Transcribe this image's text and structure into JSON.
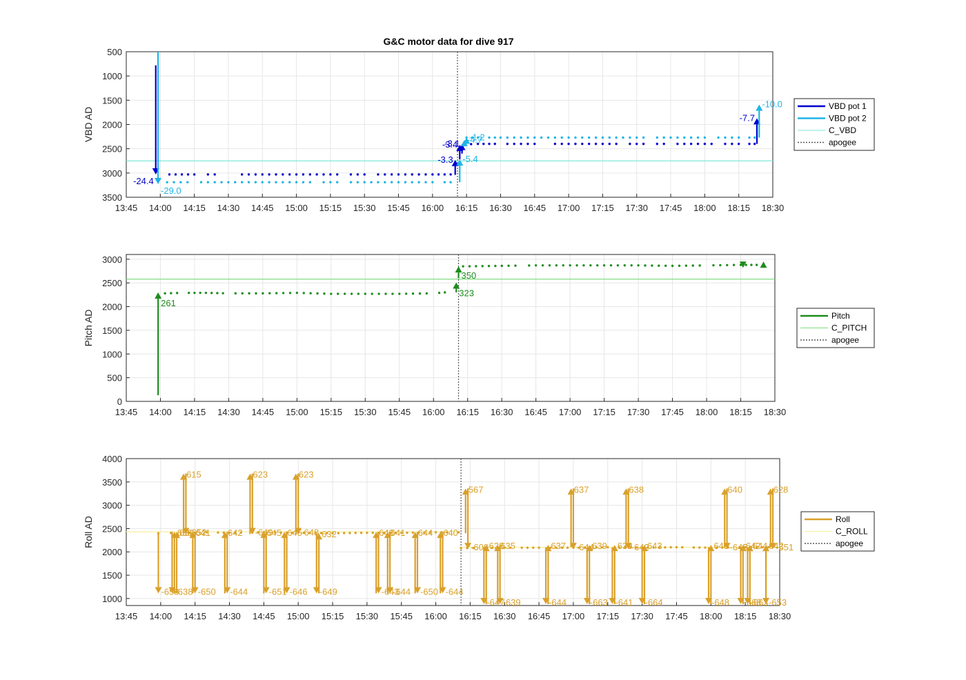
{
  "title": "G&C motor data for dive 917",
  "x_tick_labels": [
    "13:45",
    "14:00",
    "14:15",
    "14:30",
    "14:45",
    "15:00",
    "15:15",
    "15:30",
    "15:45",
    "16:00",
    "16:15",
    "16:30",
    "16:45",
    "17:00",
    "17:15",
    "17:30",
    "17:45",
    "18:00",
    "18:15",
    "18:30"
  ],
  "colors": {
    "vbd1": "#0000cd",
    "vbd2": "#1eb4e6",
    "c_vbd": "#7fe6d9",
    "pitch": "#1e8c1e",
    "c_pitch": "#7fdc7f",
    "roll": "#d9a02a",
    "c_roll": "#f5ee9a",
    "apogee": "#555555"
  },
  "chart_data": [
    {
      "type": "line",
      "title": "G&C motor data for dive 917",
      "xlabel": "",
      "ylabel": "VBD AD",
      "xlim": [
        "13:45",
        "18:30"
      ],
      "ylim": [
        500,
        3500
      ],
      "y_reversed": true,
      "y_ticks": [
        500,
        1000,
        1500,
        2000,
        2500,
        3000,
        3500
      ],
      "grid": true,
      "legend_position": "right",
      "legend": [
        "VBD pot 1",
        "VBD pot 2",
        "C_VBD",
        "apogee"
      ],
      "reference_lines": [
        {
          "name": "C_VBD",
          "y": 2750
        }
      ],
      "apogee": "16:11",
      "series": [
        {
          "name": "VBD pot 1",
          "color_key": "vbd1",
          "x": [
            "14:04",
            "14:15",
            "14:30",
            "14:45",
            "15:00",
            "15:15",
            "15:30",
            "15:45",
            "16:00",
            "16:08"
          ],
          "y": [
            3030,
            3030,
            3030,
            3030,
            3030,
            3030,
            3030,
            3030,
            3030,
            3030
          ]
        },
        {
          "name": "VBD pot 1",
          "color_key": "vbd1",
          "x": [
            "16:14",
            "16:20",
            "16:30",
            "16:45",
            "17:00",
            "17:15",
            "17:30",
            "17:45",
            "18:00",
            "18:15",
            "18:22"
          ],
          "y": [
            2410,
            2400,
            2400,
            2400,
            2400,
            2400,
            2400,
            2400,
            2400,
            2400,
            2400
          ]
        },
        {
          "name": "VBD pot 2",
          "color_key": "vbd2",
          "x": [
            "14:03",
            "14:15",
            "14:30",
            "14:45",
            "15:00",
            "15:15",
            "15:30",
            "15:45",
            "16:00",
            "16:08"
          ],
          "y": [
            3190,
            3190,
            3190,
            3190,
            3190,
            3190,
            3190,
            3190,
            3190,
            3190
          ]
        },
        {
          "name": "VBD pot 2",
          "color_key": "vbd2",
          "x": [
            "16:15",
            "16:20",
            "16:30",
            "16:45",
            "17:00",
            "17:15",
            "17:30",
            "17:45",
            "18:00",
            "18:15",
            "18:22"
          ],
          "y": [
            2270,
            2270,
            2270,
            2270,
            2270,
            2270,
            2270,
            2270,
            2270,
            2270,
            2270
          ]
        }
      ],
      "moves": [
        {
          "series": "VBD pot 1",
          "t": "13:58",
          "from": 780,
          "to": 3030,
          "label": "-24.4"
        },
        {
          "series": "VBD pot 2",
          "t": "13:59",
          "from": 500,
          "to": 3230,
          "label": "-29.0"
        },
        {
          "series": "VBD pot 1",
          "t": "16:10",
          "from": 3040,
          "to": 2730,
          "label": "-3.3"
        },
        {
          "series": "VBD pot 1",
          "t": "16:12",
          "from": 2720,
          "to": 2420,
          "label": "-3.4"
        },
        {
          "series": "VBD pot 1",
          "t": "16:13",
          "from": 2600,
          "to": 2400,
          "label": "-3.1"
        },
        {
          "series": "VBD pot 2",
          "t": "16:12",
          "from": 3190,
          "to": 2720,
          "label": "-5.4"
        },
        {
          "series": "VBD pot 2",
          "t": "16:14",
          "from": 2450,
          "to": 2320,
          "label": "-4.7"
        },
        {
          "series": "VBD pot 2",
          "t": "16:15",
          "from": 2390,
          "to": 2270,
          "label": "-1.2"
        },
        {
          "series": "VBD pot 1",
          "t": "18:23",
          "from": 2400,
          "to": 1870,
          "label": "-7.7"
        },
        {
          "series": "VBD pot 2",
          "t": "18:24",
          "from": 2270,
          "to": 1590,
          "label": "-10.0"
        }
      ]
    },
    {
      "type": "line",
      "xlabel": "",
      "ylabel": "Pitch AD",
      "xlim": [
        "13:45",
        "18:30"
      ],
      "ylim": [
        0,
        3100
      ],
      "y_ticks": [
        0,
        500,
        1000,
        1500,
        2000,
        2500,
        3000
      ],
      "grid": true,
      "legend_position": "right",
      "legend": [
        "Pitch",
        "C_PITCH",
        "apogee"
      ],
      "reference_lines": [
        {
          "name": "C_PITCH",
          "y": 2580
        }
      ],
      "apogee": "16:11",
      "series": [
        {
          "name": "Pitch",
          "color_key": "pitch",
          "x": [
            "14:02",
            "14:10",
            "14:20",
            "14:30",
            "14:45",
            "15:00",
            "15:15",
            "15:30",
            "15:45",
            "16:00",
            "16:05"
          ],
          "y": [
            2280,
            2290,
            2290,
            2280,
            2280,
            2290,
            2270,
            2270,
            2270,
            2280,
            2300
          ]
        },
        {
          "name": "Pitch",
          "color_key": "pitch",
          "x": [
            "16:13",
            "16:30",
            "16:45",
            "17:00",
            "17:15",
            "17:30",
            "17:45",
            "18:00",
            "18:15",
            "18:22"
          ],
          "y": [
            2850,
            2860,
            2870,
            2870,
            2870,
            2870,
            2860,
            2870,
            2880,
            2880
          ]
        }
      ],
      "moves": [
        {
          "t": "13:59",
          "from": 130,
          "to": 2300,
          "label": "261"
        },
        {
          "t": "16:10",
          "from": 2300,
          "to": 2510,
          "label": "323"
        },
        {
          "t": "16:11",
          "from": 2600,
          "to": 2850,
          "label": "350"
        },
        {
          "t": "18:16",
          "from": 2900,
          "to": 2820,
          "label": ""
        },
        {
          "t": "18:25",
          "from": 2880,
          "to": 2950,
          "label": ""
        }
      ]
    },
    {
      "type": "line",
      "xlabel": "",
      "ylabel": "Roll AD",
      "xlim": [
        "13:45",
        "18:30"
      ],
      "ylim": [
        850,
        4000
      ],
      "y_ticks": [
        1000,
        1500,
        2000,
        2500,
        3000,
        3500,
        4000
      ],
      "grid": true,
      "legend_position": "right",
      "legend": [
        "Roll",
        "C_ROLL",
        "apogee"
      ],
      "reference_lines": [
        {
          "name": "C_ROLL",
          "x": [
            "13:45",
            "16:10"
          ],
          "y": 2430
        },
        {
          "name": "C_ROLL",
          "x": [
            "16:10",
            "18:30"
          ],
          "y": 2100
        }
      ],
      "apogee": "16:11",
      "series": [
        {
          "name": "Roll",
          "color_key": "roll",
          "x": [
            "13:59",
            "14:10",
            "14:20",
            "14:30",
            "14:45",
            "15:00",
            "15:15",
            "15:30",
            "15:45",
            "16:00",
            "16:10"
          ],
          "y": [
            2400,
            2410,
            2420,
            2410,
            2420,
            2410,
            2400,
            2410,
            2410,
            2420,
            2420
          ]
        },
        {
          "name": "Roll",
          "color_key": "roll",
          "x": [
            "16:11",
            "16:30",
            "16:45",
            "17:00",
            "17:15",
            "17:30",
            "17:45",
            "18:00",
            "18:15",
            "18:25"
          ],
          "y": [
            2080,
            2090,
            2090,
            2090,
            2100,
            2090,
            2100,
            2090,
            2100,
            2100
          ]
        }
      ],
      "moves": [
        {
          "t": "13:59",
          "from": 2400,
          "to": 1110,
          "label": "-658"
        },
        {
          "t": "14:05",
          "from": 2430,
          "to": 1110,
          "label": "-638"
        },
        {
          "t": "14:06",
          "from": 1110,
          "to": 2430,
          "label": "636"
        },
        {
          "t": "14:07",
          "from": 1110,
          "to": 2430,
          "label": "636"
        },
        {
          "t": "14:10",
          "from": 2400,
          "to": 3680,
          "label": "615"
        },
        {
          "t": "14:11",
          "from": 3680,
          "to": 2380,
          "label": "-652"
        },
        {
          "t": "14:14",
          "from": 1110,
          "to": 2430,
          "label": "641"
        },
        {
          "t": "14:15",
          "from": 2430,
          "to": 1110,
          "label": "-650"
        },
        {
          "t": "14:28",
          "from": 1110,
          "to": 2430,
          "label": "642"
        },
        {
          "t": "14:29",
          "from": 2430,
          "to": 1110,
          "label": "-644"
        },
        {
          "t": "14:39",
          "from": 2380,
          "to": 3680,
          "label": "623"
        },
        {
          "t": "14:40",
          "from": 3680,
          "to": 2380,
          "label": "-649"
        },
        {
          "t": "14:45",
          "from": 1110,
          "to": 2430,
          "label": "645"
        },
        {
          "t": "14:46",
          "from": 2430,
          "to": 1110,
          "label": "-651"
        },
        {
          "t": "14:54",
          "from": 1110,
          "to": 2430,
          "label": "645"
        },
        {
          "t": "14:55",
          "from": 2430,
          "to": 1110,
          "label": "-646"
        },
        {
          "t": "14:59",
          "from": 2380,
          "to": 3680,
          "label": "623"
        },
        {
          "t": "15:00",
          "from": 3680,
          "to": 2380,
          "label": "-648"
        },
        {
          "t": "15:08",
          "from": 2400,
          "to": 1110,
          "label": "-649"
        },
        {
          "t": "15:09",
          "from": 1110,
          "to": 2400,
          "label": "632"
        },
        {
          "t": "15:34",
          "from": 1110,
          "to": 2430,
          "label": "643"
        },
        {
          "t": "15:35",
          "from": 2430,
          "to": 1110,
          "label": "-643"
        },
        {
          "t": "15:39",
          "from": 1110,
          "to": 2430,
          "label": "641"
        },
        {
          "t": "15:40",
          "from": 2430,
          "to": 1110,
          "label": "-644"
        },
        {
          "t": "15:51",
          "from": 1110,
          "to": 2430,
          "label": "644"
        },
        {
          "t": "15:52",
          "from": 2430,
          "to": 1110,
          "label": "-650"
        },
        {
          "t": "16:02",
          "from": 1110,
          "to": 2430,
          "label": "640"
        },
        {
          "t": "16:03",
          "from": 2430,
          "to": 1110,
          "label": "-644"
        },
        {
          "t": "16:13",
          "from": 2400,
          "to": 3360,
          "label": "567"
        },
        {
          "t": "16:14",
          "from": 3360,
          "to": 2060,
          "label": "-600"
        },
        {
          "t": "16:21",
          "from": 2100,
          "to": 880,
          "label": "-647"
        },
        {
          "t": "16:22",
          "from": 880,
          "to": 2150,
          "label": "628"
        },
        {
          "t": "16:27",
          "from": 880,
          "to": 2150,
          "label": "635"
        },
        {
          "t": "16:28",
          "from": 2150,
          "to": 880,
          "label": "-639"
        },
        {
          "t": "16:48",
          "from": 2100,
          "to": 880,
          "label": "-644"
        },
        {
          "t": "16:49",
          "from": 880,
          "to": 2150,
          "label": "637"
        },
        {
          "t": "16:59",
          "from": 2100,
          "to": 3360,
          "label": "637"
        },
        {
          "t": "17:00",
          "from": 3360,
          "to": 2060,
          "label": "-644"
        },
        {
          "t": "17:06",
          "from": 2100,
          "to": 880,
          "label": "-663"
        },
        {
          "t": "17:07",
          "from": 880,
          "to": 2150,
          "label": "639"
        },
        {
          "t": "17:17",
          "from": 2100,
          "to": 880,
          "label": "-641"
        },
        {
          "t": "17:18",
          "from": 880,
          "to": 2150,
          "label": "639"
        },
        {
          "t": "17:23",
          "from": 2100,
          "to": 3360,
          "label": "638"
        },
        {
          "t": "17:24",
          "from": 3360,
          "to": 2060,
          "label": "-642"
        },
        {
          "t": "17:30",
          "from": 2100,
          "to": 880,
          "label": "-664"
        },
        {
          "t": "17:31",
          "from": 880,
          "to": 2150,
          "label": "643"
        },
        {
          "t": "17:59",
          "from": 2100,
          "to": 880,
          "label": "-648"
        },
        {
          "t": "18:00",
          "from": 880,
          "to": 2150,
          "label": "643"
        },
        {
          "t": "18:06",
          "from": 2100,
          "to": 3360,
          "label": "640"
        },
        {
          "t": "18:07",
          "from": 3360,
          "to": 2060,
          "label": "-645"
        },
        {
          "t": "18:13",
          "from": 2100,
          "to": 880,
          "label": "-668"
        },
        {
          "t": "18:14",
          "from": 880,
          "to": 2150,
          "label": "642"
        },
        {
          "t": "18:16",
          "from": 2100,
          "to": 880,
          "label": "-663"
        },
        {
          "t": "18:17",
          "from": 880,
          "to": 2150,
          "label": "644"
        },
        {
          "t": "18:24",
          "from": 2100,
          "to": 880,
          "label": "-653"
        },
        {
          "t": "18:24",
          "from": 880,
          "to": 2150,
          "label": "642"
        },
        {
          "t": "18:26",
          "from": 2100,
          "to": 3360,
          "label": "628"
        },
        {
          "t": "18:27",
          "from": 3360,
          "to": 2060,
          "label": "-651"
        }
      ]
    }
  ]
}
